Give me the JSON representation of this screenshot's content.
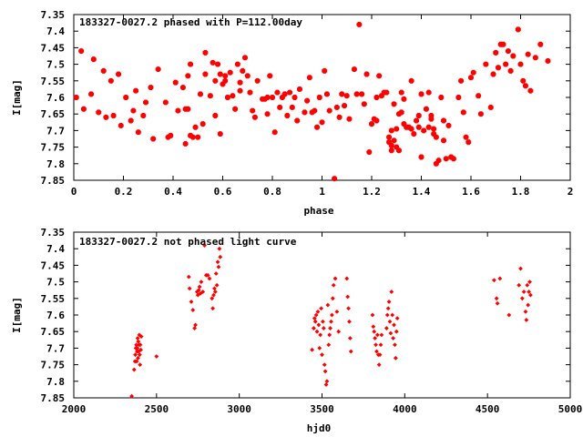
{
  "chart_data": [
    {
      "type": "scatter",
      "title": "183327-0027.2 phased with P=112.00day",
      "xlabel": "phase",
      "ylabel": "I[mag]",
      "xlim": [
        0,
        2
      ],
      "ylim": [
        7.85,
        7.35
      ],
      "y_inverted": true,
      "xticks": [
        "0",
        "0.2",
        "0.4",
        "0.6",
        "0.8",
        "1",
        "1.2",
        "1.4",
        "1.6",
        "1.8",
        "2"
      ],
      "yticks": [
        "7.35",
        "7.4",
        "7.45",
        "7.5",
        "7.55",
        "7.6",
        "7.65",
        "7.7",
        "7.75",
        "7.8",
        "7.85"
      ],
      "grid": false,
      "legend": "none",
      "marker_color": "#ff0000",
      "points": [
        [
          0.01,
          7.6
        ],
        [
          0.03,
          7.46
        ],
        [
          0.04,
          7.635
        ],
        [
          0.07,
          7.59
        ],
        [
          0.08,
          7.485
        ],
        [
          0.1,
          7.645
        ],
        [
          0.12,
          7.52
        ],
        [
          0.13,
          7.66
        ],
        [
          0.15,
          7.55
        ],
        [
          0.16,
          7.655
        ],
        [
          0.18,
          7.53
        ],
        [
          0.19,
          7.685
        ],
        [
          0.21,
          7.6
        ],
        [
          0.23,
          7.67
        ],
        [
          0.24,
          7.64
        ],
        [
          0.25,
          7.58
        ],
        [
          0.26,
          7.705
        ],
        [
          0.28,
          7.655
        ],
        [
          0.29,
          7.615
        ],
        [
          0.31,
          7.57
        ],
        [
          0.32,
          7.725
        ],
        [
          0.34,
          7.515
        ],
        [
          0.37,
          7.615
        ],
        [
          0.38,
          7.72
        ],
        [
          0.39,
          7.715
        ],
        [
          0.41,
          7.555
        ],
        [
          0.42,
          7.64
        ],
        [
          0.44,
          7.57
        ],
        [
          0.45,
          7.635
        ],
        [
          0.45,
          7.74
        ],
        [
          0.46,
          7.535
        ],
        [
          0.46,
          7.635
        ],
        [
          0.47,
          7.5
        ],
        [
          0.47,
          7.715
        ],
        [
          0.48,
          7.72
        ],
        [
          0.49,
          7.69
        ],
        [
          0.5,
          7.72
        ],
        [
          0.51,
          7.59
        ],
        [
          0.52,
          7.68
        ],
        [
          0.53,
          7.53
        ],
        [
          0.53,
          7.465
        ],
        [
          0.55,
          7.595
        ],
        [
          0.56,
          7.495
        ],
        [
          0.57,
          7.655
        ],
        [
          0.57,
          7.55
        ],
        [
          0.58,
          7.5
        ],
        [
          0.59,
          7.53
        ],
        [
          0.59,
          7.71
        ],
        [
          0.6,
          7.56
        ],
        [
          0.61,
          7.535
        ],
        [
          0.61,
          7.55
        ],
        [
          0.62,
          7.6
        ],
        [
          0.63,
          7.525
        ],
        [
          0.64,
          7.595
        ],
        [
          0.65,
          7.635
        ],
        [
          0.66,
          7.5
        ],
        [
          0.67,
          7.555
        ],
        [
          0.67,
          7.58
        ],
        [
          0.68,
          7.52
        ],
        [
          0.69,
          7.48
        ],
        [
          0.7,
          7.535
        ],
        [
          0.71,
          7.585
        ],
        [
          0.72,
          7.64
        ],
        [
          0.73,
          7.66
        ],
        [
          0.74,
          7.55
        ],
        [
          0.76,
          7.605
        ],
        [
          0.77,
          7.605
        ],
        [
          0.78,
          7.6
        ],
        [
          0.78,
          7.65
        ],
        [
          0.79,
          7.535
        ],
        [
          0.8,
          7.6
        ],
        [
          0.81,
          7.705
        ],
        [
          0.82,
          7.585
        ],
        [
          0.83,
          7.63
        ],
        [
          0.84,
          7.6
        ],
        [
          0.85,
          7.59
        ],
        [
          0.86,
          7.655
        ],
        [
          0.87,
          7.585
        ],
        [
          0.88,
          7.63
        ],
        [
          0.89,
          7.6
        ],
        [
          0.9,
          7.67
        ],
        [
          0.91,
          7.575
        ],
        [
          0.93,
          7.645
        ],
        [
          0.94,
          7.61
        ],
        [
          0.95,
          7.54
        ],
        [
          0.96,
          7.645
        ],
        [
          0.97,
          7.64
        ],
        [
          0.98,
          7.69
        ],
        [
          0.99,
          7.6
        ],
        [
          1.0,
          7.675
        ],
        [
          1.01,
          7.52
        ],
        [
          1.02,
          7.59
        ],
        [
          1.03,
          7.64
        ],
        [
          1.05,
          7.845
        ],
        [
          1.06,
          7.63
        ],
        [
          1.07,
          7.66
        ],
        [
          1.08,
          7.59
        ],
        [
          1.09,
          7.625
        ],
        [
          1.1,
          7.595
        ],
        [
          1.11,
          7.665
        ],
        [
          1.13,
          7.515
        ],
        [
          1.14,
          7.59
        ],
        [
          1.15,
          7.38
        ],
        [
          1.16,
          7.59
        ],
        [
          1.17,
          7.62
        ],
        [
          1.18,
          7.53
        ],
        [
          1.19,
          7.765
        ],
        [
          1.2,
          7.68
        ],
        [
          1.21,
          7.665
        ],
        [
          1.22,
          7.67
        ],
        [
          1.22,
          7.6
        ],
        [
          1.23,
          7.535
        ],
        [
          1.24,
          7.595
        ],
        [
          1.25,
          7.585
        ],
        [
          1.26,
          7.585
        ],
        [
          1.27,
          7.735
        ],
        [
          1.27,
          7.72
        ],
        [
          1.28,
          7.7
        ],
        [
          1.28,
          7.745
        ],
        [
          1.28,
          7.76
        ],
        [
          1.29,
          7.62
        ],
        [
          1.29,
          7.73
        ],
        [
          1.3,
          7.75
        ],
        [
          1.3,
          7.695
        ],
        [
          1.31,
          7.76
        ],
        [
          1.31,
          7.65
        ],
        [
          1.32,
          7.585
        ],
        [
          1.32,
          7.645
        ],
        [
          1.33,
          7.605
        ],
        [
          1.33,
          7.68
        ],
        [
          1.34,
          7.69
        ],
        [
          1.35,
          7.69
        ],
        [
          1.36,
          7.55
        ],
        [
          1.36,
          7.695
        ],
        [
          1.37,
          7.71
        ],
        [
          1.38,
          7.67
        ],
        [
          1.39,
          7.69
        ],
        [
          1.39,
          7.655
        ],
        [
          1.4,
          7.59
        ],
        [
          1.4,
          7.78
        ],
        [
          1.41,
          7.7
        ],
        [
          1.42,
          7.635
        ],
        [
          1.43,
          7.585
        ],
        [
          1.43,
          7.69
        ],
        [
          1.44,
          7.655
        ],
        [
          1.44,
          7.665
        ],
        [
          1.45,
          7.695
        ],
        [
          1.45,
          7.71
        ],
        [
          1.46,
          7.8
        ],
        [
          1.46,
          7.72
        ],
        [
          1.47,
          7.79
        ],
        [
          1.48,
          7.6
        ],
        [
          1.49,
          7.67
        ],
        [
          1.49,
          7.73
        ],
        [
          1.5,
          7.785
        ],
        [
          1.51,
          7.685
        ],
        [
          1.52,
          7.78
        ],
        [
          1.53,
          7.785
        ],
        [
          1.55,
          7.6
        ],
        [
          1.56,
          7.55
        ],
        [
          1.57,
          7.645
        ],
        [
          1.58,
          7.72
        ],
        [
          1.59,
          7.735
        ],
        [
          1.6,
          7.54
        ],
        [
          1.61,
          7.525
        ],
        [
          1.63,
          7.595
        ],
        [
          1.64,
          7.65
        ],
        [
          1.66,
          7.5
        ],
        [
          1.68,
          7.63
        ],
        [
          1.69,
          7.53
        ],
        [
          1.7,
          7.465
        ],
        [
          1.71,
          7.51
        ],
        [
          1.72,
          7.44
        ],
        [
          1.73,
          7.44
        ],
        [
          1.74,
          7.5
        ],
        [
          1.75,
          7.46
        ],
        [
          1.76,
          7.52
        ],
        [
          1.77,
          7.475
        ],
        [
          1.79,
          7.395
        ],
        [
          1.8,
          7.5
        ],
        [
          1.81,
          7.55
        ],
        [
          1.82,
          7.565
        ],
        [
          1.83,
          7.47
        ],
        [
          1.84,
          7.58
        ],
        [
          1.86,
          7.48
        ],
        [
          1.88,
          7.44
        ],
        [
          1.91,
          7.49
        ]
      ]
    },
    {
      "type": "scatter",
      "title": "183327-0027.2 not phased light curve",
      "xlabel": "hjd0",
      "ylabel": "I[mag]",
      "xlim": [
        2000,
        5000
      ],
      "ylim": [
        7.85,
        7.35
      ],
      "y_inverted": true,
      "xticks": [
        "2000",
        "2500",
        "3000",
        "3500",
        "4000",
        "4500",
        "5000"
      ],
      "yticks": [
        "7.35",
        "7.4",
        "7.45",
        "7.5",
        "7.55",
        "7.6",
        "7.65",
        "7.7",
        "7.75",
        "7.8",
        "7.85"
      ],
      "grid": false,
      "legend": "none",
      "marker_color": "#ff0000",
      "points": [
        [
          2350,
          7.845
        ],
        [
          2365,
          7.765
        ],
        [
          2370,
          7.74
        ],
        [
          2372,
          7.72
        ],
        [
          2375,
          7.7
        ],
        [
          2378,
          7.69
        ],
        [
          2380,
          7.74
        ],
        [
          2382,
          7.71
        ],
        [
          2384,
          7.7
        ],
        [
          2386,
          7.67
        ],
        [
          2388,
          7.73
        ],
        [
          2390,
          7.68
        ],
        [
          2392,
          7.71
        ],
        [
          2394,
          7.69
        ],
        [
          2396,
          7.66
        ],
        [
          2398,
          7.72
        ],
        [
          2400,
          7.75
        ],
        [
          2402,
          7.69
        ],
        [
          2405,
          7.705
        ],
        [
          2408,
          7.665
        ],
        [
          2500,
          7.725
        ],
        [
          2695,
          7.485
        ],
        [
          2700,
          7.52
        ],
        [
          2710,
          7.56
        ],
        [
          2720,
          7.585
        ],
        [
          2730,
          7.64
        ],
        [
          2735,
          7.63
        ],
        [
          2745,
          7.53
        ],
        [
          2750,
          7.54
        ],
        [
          2755,
          7.525
        ],
        [
          2760,
          7.515
        ],
        [
          2765,
          7.535
        ],
        [
          2770,
          7.5
        ],
        [
          2780,
          7.53
        ],
        [
          2790,
          7.39
        ],
        [
          2800,
          7.48
        ],
        [
          2810,
          7.48
        ],
        [
          2820,
          7.49
        ],
        [
          2835,
          7.55
        ],
        [
          2840,
          7.58
        ],
        [
          2845,
          7.54
        ],
        [
          2850,
          7.52
        ],
        [
          2855,
          7.53
        ],
        [
          2860,
          7.475
        ],
        [
          2865,
          7.51
        ],
        [
          2870,
          7.44
        ],
        [
          2875,
          7.455
        ],
        [
          2880,
          7.4
        ],
        [
          2885,
          7.425
        ],
        [
          3440,
          7.705
        ],
        [
          3450,
          7.64
        ],
        [
          3455,
          7.61
        ],
        [
          3460,
          7.62
        ],
        [
          3465,
          7.6
        ],
        [
          3470,
          7.65
        ],
        [
          3475,
          7.59
        ],
        [
          3480,
          7.63
        ],
        [
          3485,
          7.7
        ],
        [
          3490,
          7.66
        ],
        [
          3495,
          7.58
        ],
        [
          3500,
          7.72
        ],
        [
          3505,
          7.62
        ],
        [
          3510,
          7.64
        ],
        [
          3515,
          7.75
        ],
        [
          3520,
          7.77
        ],
        [
          3525,
          7.81
        ],
        [
          3530,
          7.8
        ],
        [
          3535,
          7.57
        ],
        [
          3540,
          7.69
        ],
        [
          3545,
          7.66
        ],
        [
          3550,
          7.64
        ],
        [
          3555,
          7.62
        ],
        [
          3560,
          7.6
        ],
        [
          3565,
          7.55
        ],
        [
          3570,
          7.51
        ],
        [
          3580,
          7.49
        ],
        [
          3590,
          7.59
        ],
        [
          3600,
          7.65
        ],
        [
          3650,
          7.49
        ],
        [
          3655,
          7.545
        ],
        [
          3660,
          7.58
        ],
        [
          3665,
          7.62
        ],
        [
          3670,
          7.67
        ],
        [
          3675,
          7.71
        ],
        [
          3805,
          7.6
        ],
        [
          3810,
          7.635
        ],
        [
          3815,
          7.65
        ],
        [
          3820,
          7.67
        ],
        [
          3825,
          7.69
        ],
        [
          3830,
          7.71
        ],
        [
          3835,
          7.66
        ],
        [
          3840,
          7.72
        ],
        [
          3845,
          7.75
        ],
        [
          3850,
          7.72
        ],
        [
          3855,
          7.69
        ],
        [
          3860,
          7.66
        ],
        [
          3890,
          7.64
        ],
        [
          3895,
          7.6
        ],
        [
          3900,
          7.58
        ],
        [
          3905,
          7.56
        ],
        [
          3910,
          7.62
        ],
        [
          3915,
          7.655
        ],
        [
          3920,
          7.53
        ],
        [
          3925,
          7.6
        ],
        [
          3930,
          7.67
        ],
        [
          3935,
          7.63
        ],
        [
          3940,
          7.69
        ],
        [
          3945,
          7.73
        ],
        [
          3950,
          7.65
        ],
        [
          3955,
          7.61
        ],
        [
          4540,
          7.495
        ],
        [
          4555,
          7.55
        ],
        [
          4560,
          7.565
        ],
        [
          4575,
          7.49
        ],
        [
          4630,
          7.6
        ],
        [
          4690,
          7.51
        ],
        [
          4700,
          7.46
        ],
        [
          4710,
          7.55
        ],
        [
          4720,
          7.53
        ],
        [
          4730,
          7.59
        ],
        [
          4735,
          7.615
        ],
        [
          4740,
          7.51
        ],
        [
          4745,
          7.57
        ],
        [
          4750,
          7.53
        ],
        [
          4755,
          7.5
        ],
        [
          4760,
          7.54
        ]
      ]
    }
  ]
}
